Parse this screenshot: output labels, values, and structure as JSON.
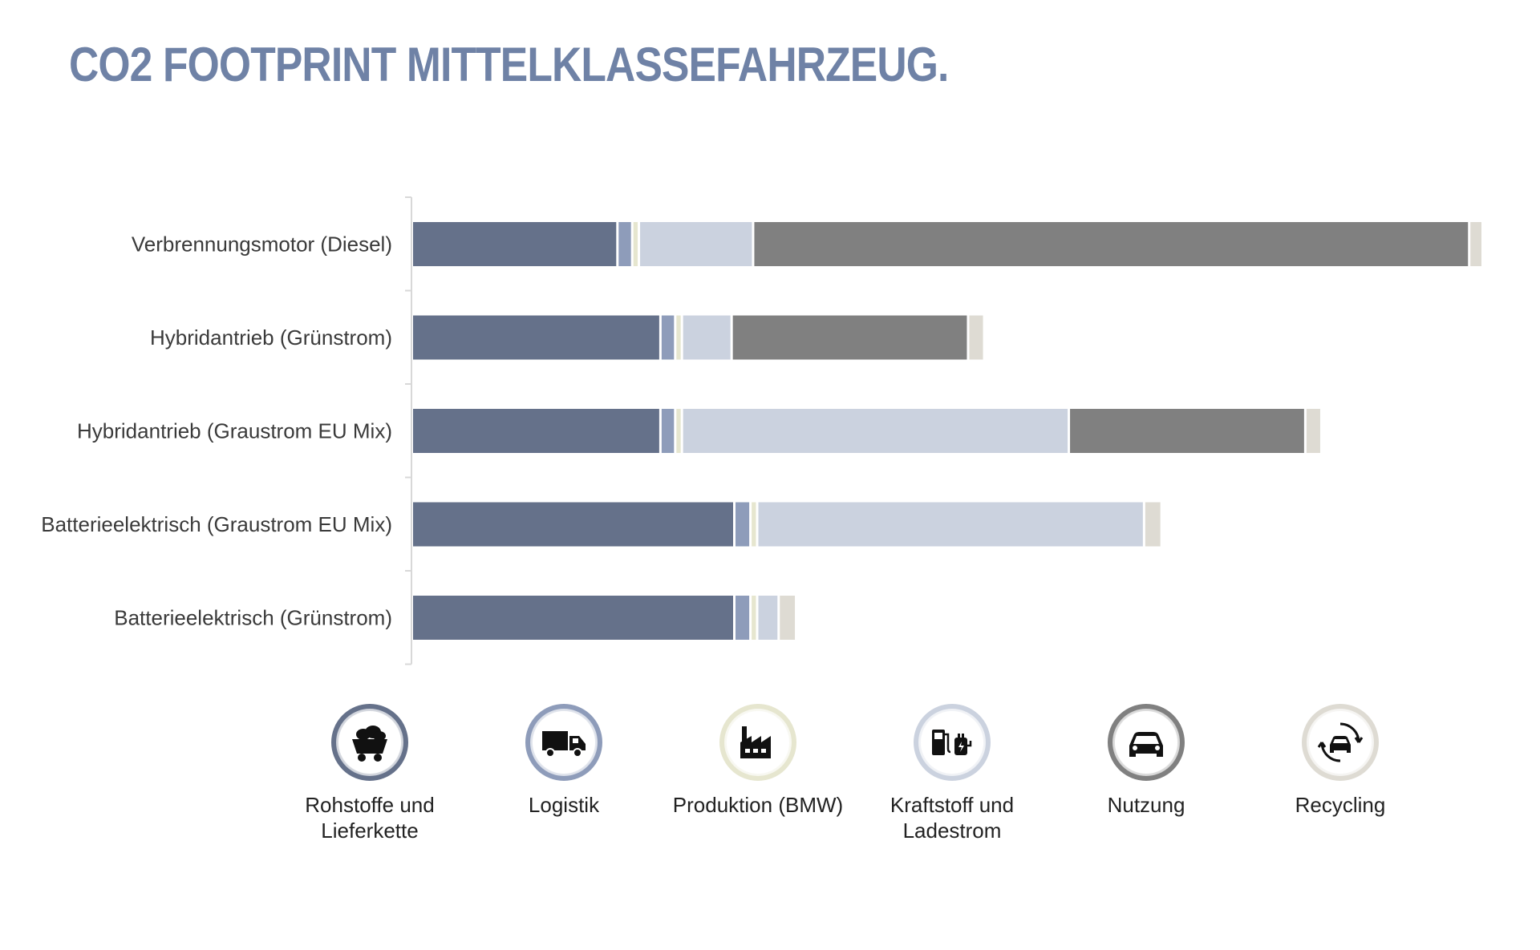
{
  "chart_data": {
    "type": "bar",
    "orientation": "horizontal",
    "stacked": true,
    "title": "CO2 FOOTPRINT  MITTELKLASSEFAHRZEUG.",
    "xlabel": "",
    "ylabel": "",
    "categories": [
      "Verbrennungsmotor (Diesel)",
      "Hybridantrieb (Grünstrom)",
      "Hybridantrieb (Graustrom EU Mix)",
      "Batterieelektrisch (Graustrom EU Mix)",
      "Batterieelektrisch (Grünstrom)"
    ],
    "series": [
      {
        "name": "Rohstoffe und\nLieferkette",
        "color": "#65718a",
        "values": [
          15.3,
          18.5,
          18.5,
          24.0,
          24.0
        ]
      },
      {
        "name": "Logistik",
        "color": "#8e9cba",
        "values": [
          1.1,
          1.1,
          1.1,
          1.2,
          1.2
        ]
      },
      {
        "name": "Produktion (BMW)",
        "color": "#e6e6cf",
        "values": [
          0.5,
          0.5,
          0.5,
          0.5,
          0.5
        ]
      },
      {
        "name": "Kraftstoff und\nLadestrom",
        "color": "#cbd2df",
        "values": [
          8.5,
          3.7,
          28.8,
          28.8,
          1.6
        ]
      },
      {
        "name": "Nutzung",
        "color": "#808080",
        "values": [
          53.3,
          17.6,
          17.6,
          0,
          0
        ]
      },
      {
        "name": "Recycling",
        "color": "#dedbd3",
        "values": [
          1.0,
          1.2,
          1.2,
          1.3,
          1.3
        ]
      }
    ],
    "xlim": [
      0,
      80
    ],
    "grid": false,
    "legend": "bottom"
  },
  "legend_icons": [
    "mine-cart-icon",
    "truck-icon",
    "factory-icon",
    "fuel-charging-icon",
    "car-icon",
    "recycling-car-icon"
  ]
}
